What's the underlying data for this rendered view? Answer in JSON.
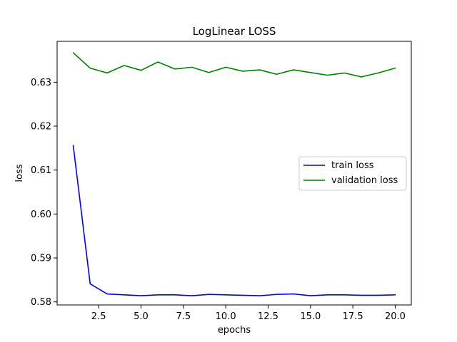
{
  "chart_data": {
    "type": "line",
    "title": "LogLinear LOSS",
    "xlabel": "epochs",
    "ylabel": "loss",
    "xlim": [
      0.05,
      20.95
    ],
    "ylim": [
      0.5793,
      0.6393
    ],
    "xticks": [
      2.5,
      5.0,
      7.5,
      10.0,
      12.5,
      15.0,
      17.5,
      20.0
    ],
    "xtick_labels": [
      "2.5",
      "5.0",
      "7.5",
      "10.0",
      "12.5",
      "15.0",
      "17.5",
      "20.0"
    ],
    "yticks": [
      0.58,
      0.59,
      0.6,
      0.61,
      0.62,
      0.63
    ],
    "ytick_labels": [
      "0.58",
      "0.59",
      "0.60",
      "0.61",
      "0.62",
      "0.63"
    ],
    "grid": false,
    "legend_position": "center-right",
    "x": [
      1,
      2,
      3,
      4,
      5,
      6,
      7,
      8,
      9,
      10,
      11,
      12,
      13,
      14,
      15,
      16,
      17,
      18,
      19,
      20
    ],
    "series": [
      {
        "name": "train loss",
        "color": "#0000ff",
        "values": [
          0.6156,
          0.5841,
          0.5818,
          0.5816,
          0.5814,
          0.5816,
          0.5816,
          0.5814,
          0.5817,
          0.5816,
          0.5815,
          0.5814,
          0.5817,
          0.5818,
          0.5814,
          0.5816,
          0.5816,
          0.5815,
          0.5815,
          0.5816
        ]
      },
      {
        "name": "validation loss",
        "color": "#008000",
        "values": [
          0.6367,
          0.6332,
          0.6321,
          0.6338,
          0.6327,
          0.6346,
          0.633,
          0.6334,
          0.6322,
          0.6334,
          0.6325,
          0.6328,
          0.6318,
          0.6328,
          0.6322,
          0.6316,
          0.6321,
          0.6312,
          0.6321,
          0.6332
        ]
      }
    ]
  }
}
